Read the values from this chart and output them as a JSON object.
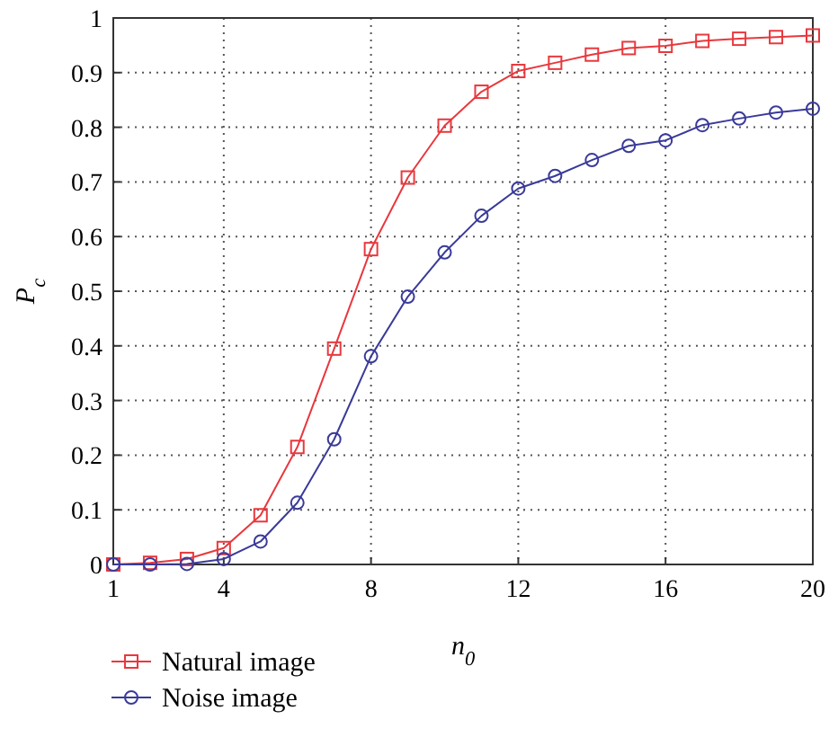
{
  "chart_data": {
    "type": "line",
    "xlabel": "n$_{0}$",
    "ylabel": "P$_{c}$",
    "x": [
      1,
      2,
      3,
      4,
      5,
      6,
      7,
      8,
      9,
      10,
      11,
      12,
      13,
      14,
      15,
      16,
      17,
      18,
      19,
      20
    ],
    "series": [
      {
        "name": "Natural image",
        "color": "#e8383d",
        "marker": "square",
        "values": [
          0,
          0.003,
          0.01,
          0.03,
          0.09,
          0.215,
          0.395,
          0.577,
          0.708,
          0.803,
          0.865,
          0.903,
          0.918,
          0.933,
          0.945,
          0.949,
          0.958,
          0.962,
          0.965,
          0.968
        ]
      },
      {
        "name": "Noise image",
        "color": "#3a3a9a",
        "marker": "circle",
        "values": [
          0,
          0,
          0.001,
          0.01,
          0.042,
          0.113,
          0.229,
          0.381,
          0.49,
          0.571,
          0.638,
          0.688,
          0.711,
          0.74,
          0.766,
          0.776,
          0.804,
          0.816,
          0.827,
          0.834
        ]
      }
    ],
    "xlim": [
      1,
      20
    ],
    "xticks": [
      1,
      4,
      8,
      12,
      16,
      20
    ],
    "ylim": [
      0,
      1
    ],
    "yticks": [
      0,
      0.1,
      0.2,
      0.3,
      0.4,
      0.5,
      0.6,
      0.7,
      0.8,
      0.9,
      1
    ],
    "grid": true,
    "legend": "bottom left",
    "line_style": "solid"
  }
}
